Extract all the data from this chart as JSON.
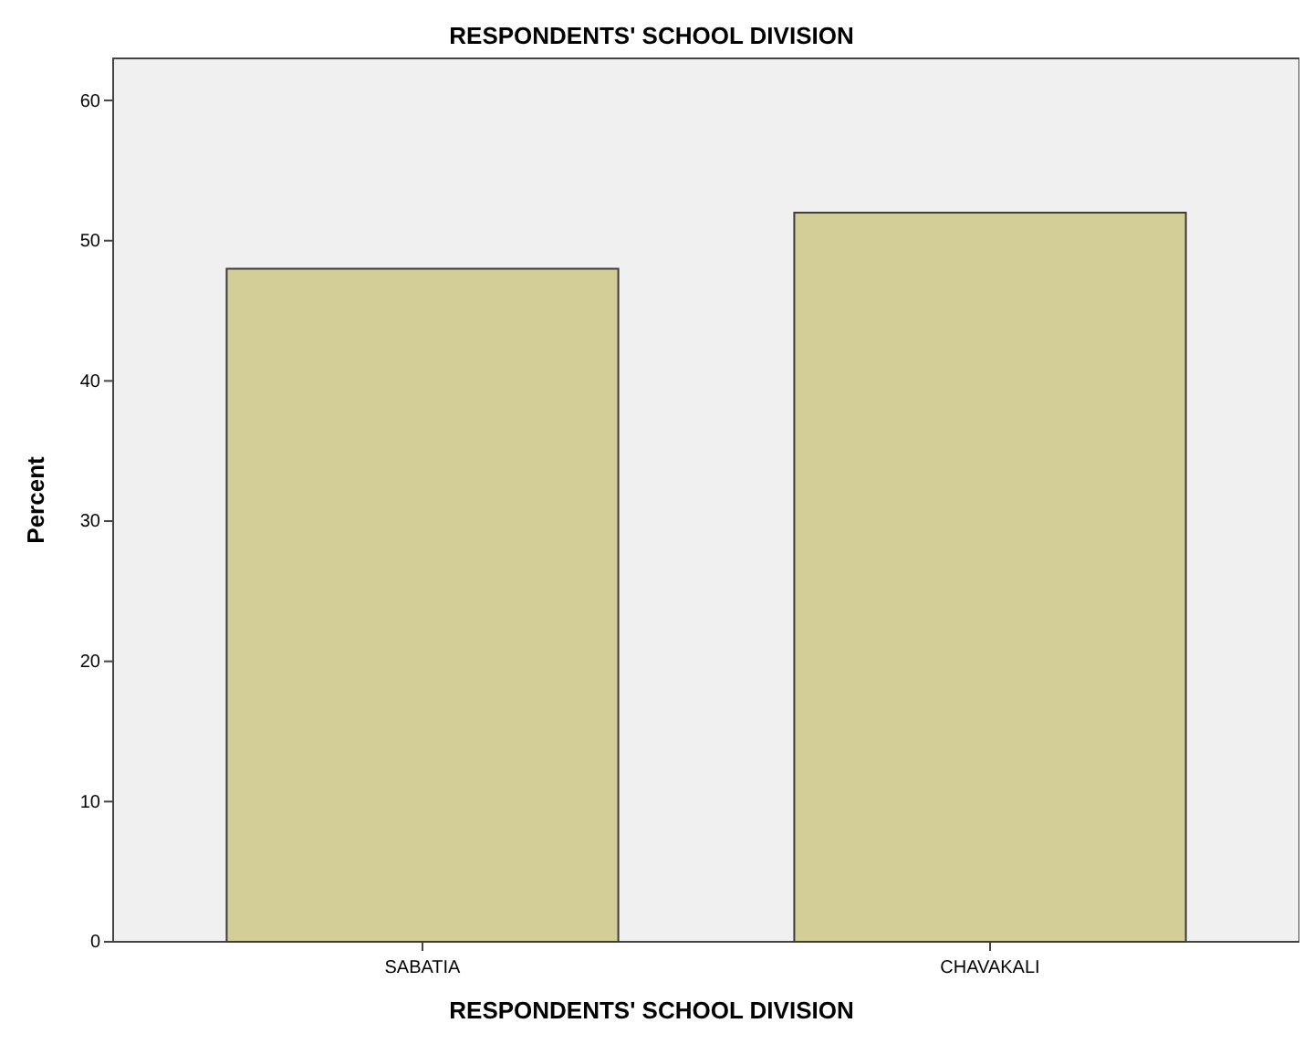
{
  "chart_data": {
    "type": "bar",
    "title": "RESPONDENTS' SCHOOL DIVISION",
    "xlabel": "RESPONDENTS' SCHOOL DIVISION",
    "ylabel": "Percent",
    "categories": [
      "SABATIA",
      "CHAVAKALI"
    ],
    "values": [
      48,
      52
    ],
    "color": "#d3ce97",
    "ylim": [
      0,
      63
    ],
    "yticks": [
      0,
      10,
      20,
      30,
      40,
      50,
      60
    ],
    "grid": false
  }
}
